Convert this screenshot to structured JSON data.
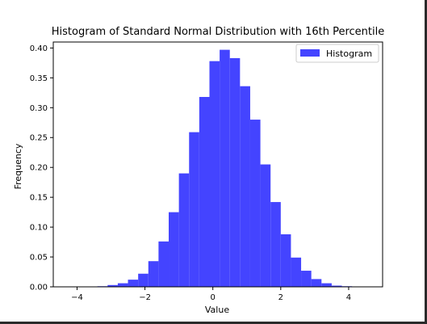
{
  "chart_data": {
    "type": "bar",
    "title": "Histogram of Standard Normal Distribution with 16th Percentile",
    "xlabel": "Value",
    "ylabel": "Frequency",
    "xlim": [
      -4.7,
      5.0
    ],
    "ylim": [
      0,
      0.41
    ],
    "x_ticks": [
      -4,
      -2,
      0,
      2,
      4
    ],
    "x_tick_labels": [
      "−4",
      "−2",
      "0",
      "2",
      "4"
    ],
    "y_ticks": [
      0.0,
      0.05,
      0.1,
      0.15,
      0.2,
      0.25,
      0.3,
      0.35,
      0.4
    ],
    "y_tick_labels": [
      "0.00",
      "0.05",
      "0.10",
      "0.15",
      "0.20",
      "0.25",
      "0.30",
      "0.35",
      "0.40"
    ],
    "grid": false,
    "legend": {
      "position": "top-right",
      "entries": [
        "Histogram"
      ]
    },
    "bar_color": "#4444ff",
    "bin_width": 0.3,
    "bins": [
      {
        "x0": -4.0,
        "value": 0.0002
      },
      {
        "x0": -3.7,
        "value": 0.0003
      },
      {
        "x0": -3.4,
        "value": 0.001
      },
      {
        "x0": -3.1,
        "value": 0.003
      },
      {
        "x0": -2.8,
        "value": 0.006
      },
      {
        "x0": -2.5,
        "value": 0.012
      },
      {
        "x0": -2.2,
        "value": 0.022
      },
      {
        "x0": -1.9,
        "value": 0.043
      },
      {
        "x0": -1.6,
        "value": 0.076
      },
      {
        "x0": -1.3,
        "value": 0.125
      },
      {
        "x0": -1.0,
        "value": 0.19
      },
      {
        "x0": -0.7,
        "value": 0.259
      },
      {
        "x0": -0.4,
        "value": 0.318
      },
      {
        "x0": -0.1,
        "value": 0.378
      },
      {
        "x0": 0.2,
        "value": 0.397
      },
      {
        "x0": 0.5,
        "value": 0.383
      },
      {
        "x0": 0.8,
        "value": 0.336
      },
      {
        "x0": 1.1,
        "value": 0.28
      },
      {
        "x0": 1.4,
        "value": 0.205
      },
      {
        "x0": 1.7,
        "value": 0.142
      },
      {
        "x0": 2.0,
        "value": 0.088
      },
      {
        "x0": 2.3,
        "value": 0.049
      },
      {
        "x0": 2.6,
        "value": 0.027
      },
      {
        "x0": 2.9,
        "value": 0.013
      },
      {
        "x0": 3.2,
        "value": 0.006
      },
      {
        "x0": 3.5,
        "value": 0.002
      },
      {
        "x0": 3.8,
        "value": 0.001
      },
      {
        "x0": 4.1,
        "value": 0.0003
      },
      {
        "x0": 4.4,
        "value": 0.0001
      }
    ]
  }
}
